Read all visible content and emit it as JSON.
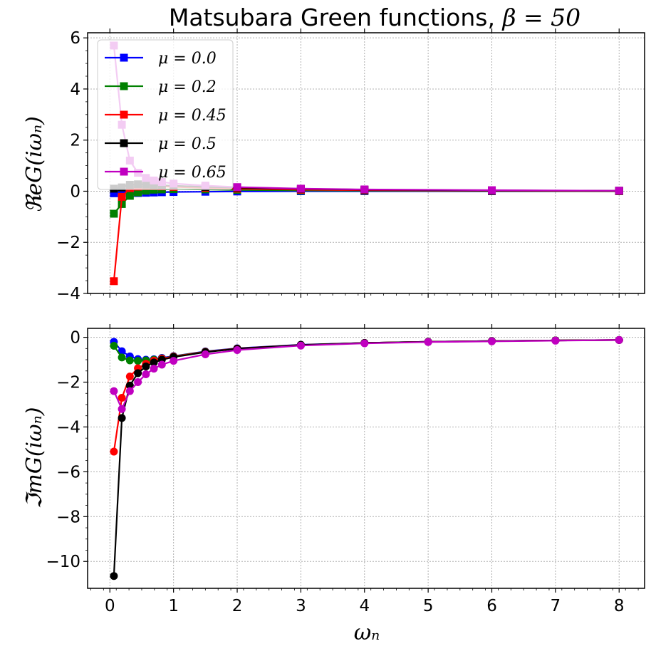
{
  "chart_data": [
    {
      "type": "line",
      "panel": "top",
      "title_prefix": "Matsubara Green functions, ",
      "title_math": "β = 50",
      "xlabel": "",
      "ylabel": "ℜeG(iωₙ)",
      "xlim": [
        -0.35,
        8.4
      ],
      "ylim": [
        -4,
        6.2
      ],
      "yticks": [
        -4,
        -2,
        0,
        2,
        4,
        6
      ],
      "ytick_labels": [
        "−4",
        "−2",
        "0",
        "2",
        "4",
        "6"
      ],
      "xticks": [
        0,
        1,
        2,
        3,
        4,
        5,
        6,
        7,
        8
      ],
      "grid": true,
      "marker": "square",
      "legend": "upper-left",
      "series": [
        {
          "name": "μ = 0.0",
          "color": "#0000ff",
          "points": [
            [
              0.063,
              -0.08
            ],
            [
              0.188,
              -0.08
            ],
            [
              0.314,
              -0.08
            ],
            [
              0.44,
              -0.07
            ],
            [
              0.566,
              -0.06
            ],
            [
              0.691,
              -0.05
            ],
            [
              0.817,
              -0.04
            ],
            [
              1.0,
              -0.03
            ],
            [
              1.5,
              -0.02
            ],
            [
              2.0,
              -0.01
            ],
            [
              3.0,
              0.0
            ],
            [
              4.0,
              0.0
            ],
            [
              6.0,
              0.0
            ],
            [
              8.0,
              0.0
            ]
          ]
        },
        {
          "name": "μ = 0.2",
          "color": "#008000",
          "points": [
            [
              0.063,
              -0.88
            ],
            [
              0.188,
              -0.5
            ],
            [
              0.314,
              -0.18
            ],
            [
              0.44,
              -0.05
            ],
            [
              0.566,
              0.02
            ],
            [
              0.691,
              0.06
            ],
            [
              0.817,
              0.07
            ],
            [
              1.0,
              0.08
            ],
            [
              1.5,
              0.07
            ],
            [
              2.0,
              0.05
            ],
            [
              3.0,
              0.03
            ],
            [
              4.0,
              0.02
            ],
            [
              6.0,
              0.01
            ],
            [
              8.0,
              0.0
            ]
          ]
        },
        {
          "name": "μ = 0.45",
          "color": "#ff0000",
          "points": [
            [
              0.063,
              -3.52
            ],
            [
              0.188,
              -0.22
            ],
            [
              0.314,
              0.12
            ],
            [
              0.44,
              0.18
            ],
            [
              0.566,
              0.2
            ],
            [
              0.691,
              0.2
            ],
            [
              0.817,
              0.19
            ],
            [
              1.0,
              0.17
            ],
            [
              1.5,
              0.13
            ],
            [
              2.0,
              0.1
            ],
            [
              3.0,
              0.06
            ],
            [
              4.0,
              0.04
            ],
            [
              6.0,
              0.02
            ],
            [
              8.0,
              0.01
            ]
          ]
        },
        {
          "name": "μ = 0.5",
          "color": "#000000",
          "points": [
            [
              0.063,
              0.1
            ],
            [
              0.188,
              0.15
            ],
            [
              0.314,
              0.25
            ],
            [
              0.44,
              0.27
            ],
            [
              0.566,
              0.26
            ],
            [
              0.691,
              0.25
            ],
            [
              0.817,
              0.23
            ],
            [
              1.0,
              0.21
            ],
            [
              1.5,
              0.17
            ],
            [
              2.0,
              0.14
            ],
            [
              3.0,
              0.09
            ],
            [
              4.0,
              0.06
            ],
            [
              6.0,
              0.03
            ],
            [
              8.0,
              0.02
            ]
          ]
        },
        {
          "name": "μ = 0.65",
          "color": "#c000c0",
          "points": [
            [
              0.063,
              5.7
            ],
            [
              0.188,
              2.6
            ],
            [
              0.314,
              1.2
            ],
            [
              0.44,
              0.72
            ],
            [
              0.566,
              0.52
            ],
            [
              0.691,
              0.42
            ],
            [
              0.817,
              0.36
            ],
            [
              1.0,
              0.3
            ],
            [
              1.5,
              0.22
            ],
            [
              2.0,
              0.16
            ],
            [
              3.0,
              0.1
            ],
            [
              4.0,
              0.07
            ],
            [
              6.0,
              0.04
            ],
            [
              8.0,
              0.02
            ]
          ]
        }
      ]
    },
    {
      "type": "line",
      "panel": "bottom",
      "xlabel": "ωₙ",
      "ylabel": "ℑmG(iωₙ)",
      "xlim": [
        -0.35,
        8.4
      ],
      "ylim": [
        -11.2,
        0.4
      ],
      "yticks": [
        -10,
        -8,
        -6,
        -4,
        -2,
        0
      ],
      "ytick_labels": [
        "−10",
        "−8",
        "−6",
        "−4",
        "−2",
        "0"
      ],
      "xticks": [
        0,
        1,
        2,
        3,
        4,
        5,
        6,
        7,
        8
      ],
      "xtick_labels": [
        "0",
        "1",
        "2",
        "3",
        "4",
        "5",
        "6",
        "7",
        "8"
      ],
      "grid": true,
      "marker": "circle",
      "series": [
        {
          "name": "μ = 0.0",
          "color": "#0000ff",
          "points": [
            [
              0.063,
              -0.2
            ],
            [
              0.188,
              -0.62
            ],
            [
              0.314,
              -0.85
            ],
            [
              0.44,
              -0.97
            ],
            [
              0.566,
              -1.0
            ],
            [
              0.691,
              -0.98
            ],
            [
              0.817,
              -0.92
            ],
            [
              1.0,
              -0.84
            ],
            [
              1.5,
              -0.63
            ],
            [
              2.0,
              -0.49
            ],
            [
              3.0,
              -0.33
            ],
            [
              4.0,
              -0.25
            ],
            [
              5.0,
              -0.2
            ],
            [
              6.0,
              -0.17
            ],
            [
              7.0,
              -0.14
            ],
            [
              8.0,
              -0.12
            ]
          ]
        },
        {
          "name": "μ = 0.2",
          "color": "#008000",
          "points": [
            [
              0.063,
              -0.38
            ],
            [
              0.188,
              -0.9
            ],
            [
              0.314,
              -1.03
            ],
            [
              0.44,
              -1.05
            ],
            [
              0.566,
              -1.03
            ],
            [
              0.691,
              -1.0
            ],
            [
              0.817,
              -0.94
            ],
            [
              1.0,
              -0.85
            ],
            [
              1.5,
              -0.64
            ],
            [
              2.0,
              -0.5
            ],
            [
              3.0,
              -0.34
            ],
            [
              4.0,
              -0.25
            ],
            [
              5.0,
              -0.2
            ],
            [
              6.0,
              -0.17
            ],
            [
              7.0,
              -0.14
            ],
            [
              8.0,
              -0.12
            ]
          ]
        },
        {
          "name": "μ = 0.45",
          "color": "#ff0000",
          "points": [
            [
              0.063,
              -5.1
            ],
            [
              0.188,
              -2.7
            ],
            [
              0.314,
              -1.75
            ],
            [
              0.44,
              -1.38
            ],
            [
              0.566,
              -1.18
            ],
            [
              0.691,
              -1.04
            ],
            [
              0.817,
              -0.95
            ],
            [
              1.0,
              -0.86
            ],
            [
              1.5,
              -0.65
            ],
            [
              2.0,
              -0.5
            ],
            [
              3.0,
              -0.34
            ],
            [
              4.0,
              -0.25
            ],
            [
              5.0,
              -0.2
            ],
            [
              6.0,
              -0.17
            ],
            [
              7.0,
              -0.14
            ],
            [
              8.0,
              -0.12
            ]
          ]
        },
        {
          "name": "μ = 0.5",
          "color": "#000000",
          "points": [
            [
              0.063,
              -10.65
            ],
            [
              0.188,
              -3.6
            ],
            [
              0.314,
              -2.15
            ],
            [
              0.44,
              -1.6
            ],
            [
              0.566,
              -1.3
            ],
            [
              0.691,
              -1.12
            ],
            [
              0.817,
              -1.0
            ],
            [
              1.0,
              -0.88
            ],
            [
              1.5,
              -0.66
            ],
            [
              2.0,
              -0.51
            ],
            [
              3.0,
              -0.34
            ],
            [
              4.0,
              -0.25
            ],
            [
              5.0,
              -0.2
            ],
            [
              6.0,
              -0.17
            ],
            [
              7.0,
              -0.14
            ],
            [
              8.0,
              -0.12
            ]
          ]
        },
        {
          "name": "μ = 0.65",
          "color": "#c000c0",
          "points": [
            [
              0.063,
              -2.4
            ],
            [
              0.188,
              -3.2
            ],
            [
              0.314,
              -2.4
            ],
            [
              0.44,
              -2.0
            ],
            [
              0.566,
              -1.65
            ],
            [
              0.691,
              -1.4
            ],
            [
              0.817,
              -1.22
            ],
            [
              1.0,
              -1.05
            ],
            [
              1.5,
              -0.76
            ],
            [
              2.0,
              -0.57
            ],
            [
              3.0,
              -0.37
            ],
            [
              4.0,
              -0.27
            ],
            [
              5.0,
              -0.21
            ],
            [
              6.0,
              -0.18
            ],
            [
              7.0,
              -0.15
            ],
            [
              8.0,
              -0.12
            ]
          ]
        }
      ]
    }
  ]
}
